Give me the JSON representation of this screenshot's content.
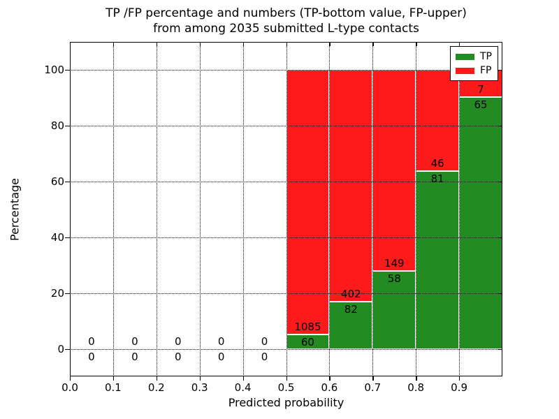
{
  "chart_data": {
    "type": "bar",
    "stacked": true,
    "normalized_to_percent": true,
    "title_lines": [
      "TP /FP percentage and numbers (TP-bottom value, FP-upper)",
      "from among 2035 submitted L-type contacts"
    ],
    "xlabel": "Predicted probability",
    "ylabel": "Percentage",
    "x_tick_labels": [
      "0.0",
      "0.1",
      "0.2",
      "0.3",
      "0.4",
      "0.5",
      "0.6",
      "0.7",
      "0.8",
      "0.9"
    ],
    "x_ticks": [
      0,
      0.1,
      0.2,
      0.3,
      0.4,
      0.5,
      0.6,
      0.7,
      0.8,
      0.9
    ],
    "y_ticks": [
      0,
      20,
      40,
      60,
      80,
      100
    ],
    "xlim": [
      0,
      1
    ],
    "ylim": [
      -10,
      110
    ],
    "bin_width": 0.1,
    "bin_starts": [
      0,
      0.1,
      0.2,
      0.3,
      0.4,
      0.5,
      0.6,
      0.7,
      0.8,
      0.9
    ],
    "series": [
      {
        "name": "TP",
        "color": "#228b22",
        "counts": [
          0,
          0,
          0,
          0,
          0,
          60,
          82,
          58,
          81,
          65
        ]
      },
      {
        "name": "FP",
        "color": "#fd1a1a",
        "counts": [
          0,
          0,
          0,
          0,
          0,
          1085,
          402,
          149,
          46,
          7
        ]
      }
    ],
    "total_contacts": 2035,
    "legend_position": "upper right",
    "grid": "dotted",
    "grid_color": "#000000",
    "background_color": "#ffffff"
  }
}
